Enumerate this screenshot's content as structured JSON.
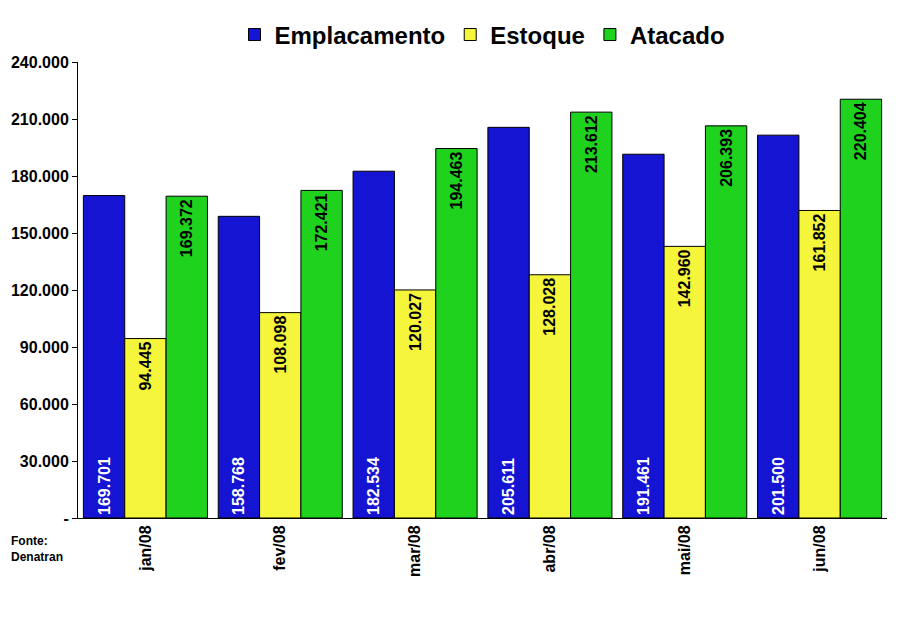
{
  "chart_data": {
    "type": "bar",
    "categories": [
      "jan/08",
      "fev/08",
      "mar/08",
      "abr/08",
      "mai/08",
      "jun/08"
    ],
    "series": [
      {
        "name": "Emplacamento",
        "color": "#1414d2",
        "values": [
          169701,
          158768,
          182534,
          205611,
          191461,
          201500
        ],
        "value_labels": [
          "169.701",
          "158.768",
          "182.534",
          "205.611",
          "191.461",
          "201.500"
        ]
      },
      {
        "name": "Estoque",
        "color": "#f5f53c",
        "values": [
          94445,
          108098,
          120027,
          128028,
          142960,
          161852
        ],
        "value_labels": [
          "94.445",
          "108.098",
          "120.027",
          "128.028",
          "142.960",
          "161.852"
        ]
      },
      {
        "name": "Atacado",
        "color": "#1ed21e",
        "values": [
          169372,
          172421,
          194463,
          213612,
          206393,
          220404
        ],
        "value_labels": [
          "169.372",
          "172.421",
          "194.463",
          "213.612",
          "206.393",
          "220.404"
        ]
      }
    ],
    "ylim": [
      0,
      240000
    ],
    "yticks": [
      {
        "value": 0,
        "label": "-"
      },
      {
        "value": 30000,
        "label": "30.000"
      },
      {
        "value": 60000,
        "label": "60.000"
      },
      {
        "value": 90000,
        "label": "90.000"
      },
      {
        "value": 120000,
        "label": "120.000"
      },
      {
        "value": 150000,
        "label": "150.000"
      },
      {
        "value": 180000,
        "label": "180.000"
      },
      {
        "value": 210000,
        "label": "210.000"
      },
      {
        "value": 240000,
        "label": "240.000"
      }
    ],
    "annotations": [
      "Fonte:",
      "Denatran"
    ],
    "data_labels": true,
    "grid": false,
    "legend": "top"
  }
}
